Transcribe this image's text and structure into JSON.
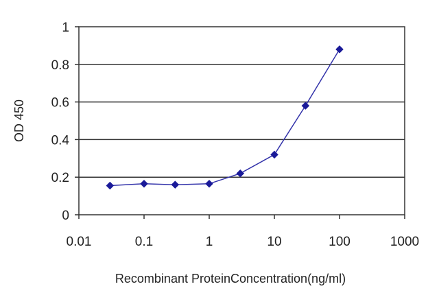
{
  "chart_data": {
    "type": "line",
    "title": "",
    "xlabel": "Recombinant ProteinConcentration(ng/ml)",
    "ylabel": "OD 450",
    "x_scale": "log",
    "xlim": [
      0.01,
      1000
    ],
    "ylim": [
      0,
      1
    ],
    "x_ticks": [
      "0.01",
      "0.1",
      "1",
      "10",
      "100",
      "1000"
    ],
    "y_ticks": [
      "0",
      "0.2",
      "0.4",
      "0.6",
      "0.8",
      "1"
    ],
    "grid": "horizontal",
    "series": [
      {
        "color": "#3333aa",
        "marker_color": "#1a1a99",
        "x": [
          0.03,
          0.1,
          0.3,
          1,
          3,
          10,
          30,
          100
        ],
        "y": [
          0.155,
          0.165,
          0.16,
          0.165,
          0.22,
          0.32,
          0.58,
          0.88
        ]
      }
    ]
  }
}
